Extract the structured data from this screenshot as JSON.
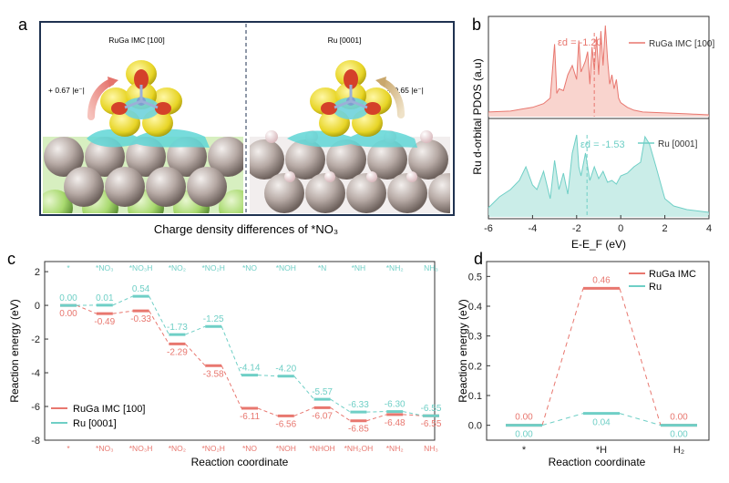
{
  "panels": {
    "a": {
      "label": "a",
      "left_title": "RuGa IMC [100]",
      "right_title": "Ru [0001]",
      "left_charge": "+ 0.67 |e⁻|",
      "right_charge": "+ 0.65 |e⁻|",
      "caption": "Charge density differences of *NO₃"
    },
    "b": {
      "label": "b",
      "ylabel": "Ru d-orbital PDOS (a.u)",
      "xlabel": "E-E_F (eV)",
      "xticks": [
        "-6",
        "-4",
        "-2",
        "0",
        "2",
        "4"
      ],
      "top_legend": "RuGa IMC [100]",
      "bottom_legend": "Ru [0001]",
      "top_ed": "εd = -1.20",
      "bottom_ed": "εd = -1.53"
    },
    "c": {
      "label": "c",
      "ylabel": "Reaction energy (eV)",
      "xlabel": "Reaction coordinate",
      "yticks": [
        "2",
        "0",
        "-2",
        "-4",
        "-6",
        "-8"
      ],
      "top_labels": [
        "*",
        "*NO₃",
        "*NO₃H",
        "*NO₂",
        "*NO₂H",
        "*NO",
        "*NOH",
        "*N",
        "*NH",
        "*NH₂",
        "NH₃"
      ],
      "bottom_labels": [
        "*",
        "*NO₃",
        "*NO₃H",
        "*NO₂",
        "*NO₂H",
        "*NO",
        "*NOH",
        "*NHOH",
        "*NH₂OH",
        "*NH₂",
        "NH₃"
      ],
      "legend": [
        "RuGa IMC [100]",
        "Ru [0001]"
      ]
    },
    "d": {
      "label": "d",
      "ylabel": "Reaction energy (eV)",
      "xlabel": "Reaction coordinate",
      "yticks": [
        "0.0",
        "0.1",
        "0.2",
        "0.3",
        "0.4",
        "0.5"
      ],
      "xticks": [
        "*",
        "*H",
        "H₂"
      ],
      "legend": [
        "RuGa IMC",
        "Ru"
      ]
    }
  },
  "colors": {
    "ruga": "#e8776f",
    "ru": "#6fcfc6",
    "ruga_fill": "#f7c9c2",
    "ru_fill": "#bde9e2",
    "frame": "#1f3250"
  },
  "chart_data": [
    {
      "type": "line",
      "panel": "c",
      "title": "",
      "xlabel": "Reaction coordinate",
      "ylabel": "Reaction energy (eV)",
      "ylim": [
        -8,
        2.6
      ],
      "series": [
        {
          "name": "RuGa IMC [100]",
          "values": [
            0.0,
            -0.49,
            -0.33,
            -2.29,
            -3.58,
            -6.11,
            -6.56,
            -6.07,
            -6.85,
            -6.48,
            -6.55
          ]
        },
        {
          "name": "Ru [0001]",
          "values": [
            0.0,
            0.01,
            0.54,
            -1.73,
            -1.25,
            -4.14,
            -4.2,
            -5.57,
            -6.33,
            -6.3,
            -6.55
          ]
        }
      ],
      "value_labels": {
        "ruga": [
          "0.00",
          "-0.49",
          "-0.33",
          "-2.29",
          "-3.58",
          "-6.11",
          "-6.56",
          "-6.07",
          "-6.85",
          "-6.48",
          "-6.55"
        ],
        "ru": [
          "0.00",
          "0.01",
          "0.54",
          "-1.73",
          "-1.25",
          "-4.14",
          "-4.20",
          "-5.57",
          "-6.33",
          "-6.30",
          "-6.55"
        ]
      }
    },
    {
      "type": "line",
      "panel": "d",
      "title": "",
      "categories": [
        "*",
        "*H",
        "H₂"
      ],
      "xlabel": "Reaction coordinate",
      "ylabel": "Reaction energy (eV)",
      "ylim": [
        -0.05,
        0.55
      ],
      "series": [
        {
          "name": "RuGa IMC",
          "values": [
            0.0,
            0.46,
            0.0
          ],
          "labels": [
            "0.00",
            "0.46",
            "0.00"
          ]
        },
        {
          "name": "Ru",
          "values": [
            0.0,
            0.04,
            0.0
          ],
          "labels": [
            "0.00",
            "0.04",
            "0.00"
          ]
        }
      ]
    },
    {
      "type": "area",
      "panel": "b",
      "title": "",
      "xlabel": "E-E_F (eV)",
      "ylabel": "Ru d-orbital PDOS (a.u)",
      "xlim": [
        -6,
        4
      ],
      "series": [
        {
          "name": "RuGa IMC [100]",
          "d_band_center": -1.2,
          "x": [
            -6,
            -5,
            -4.5,
            -4,
            -3.5,
            -3.2,
            -3.0,
            -2.9,
            -2.8,
            -2.6,
            -2.4,
            -2.2,
            -2.0,
            -1.9,
            -1.8,
            -1.6,
            -1.5,
            -1.4,
            -1.3,
            -1.2,
            -1.1,
            -1.0,
            -0.9,
            -0.8,
            -0.7,
            -0.6,
            -0.5,
            -0.4,
            -0.3,
            -0.2,
            -0.1,
            0,
            0.3,
            0.6,
            1,
            2,
            3,
            4
          ],
          "y": [
            0.05,
            0.06,
            0.08,
            0.1,
            0.14,
            0.2,
            0.78,
            0.25,
            0.3,
            0.28,
            0.45,
            0.55,
            0.4,
            0.82,
            0.48,
            0.6,
            0.7,
            0.35,
            0.75,
            0.5,
            0.86,
            0.45,
            0.92,
            0.55,
            0.98,
            0.62,
            0.35,
            0.45,
            0.3,
            0.4,
            0.2,
            0.15,
            0.1,
            0.07,
            0.05,
            0.04,
            0.03,
            0.02
          ]
        },
        {
          "name": "Ru [0001]",
          "d_band_center": -1.53,
          "x": [
            -6,
            -5.5,
            -5,
            -4.6,
            -4.3,
            -4.0,
            -3.8,
            -3.5,
            -3.2,
            -3.0,
            -2.8,
            -2.6,
            -2.4,
            -2.2,
            -2.0,
            -1.9,
            -1.8,
            -1.6,
            -1.4,
            -1.2,
            -1.0,
            -0.8,
            -0.6,
            -0.4,
            -0.2,
            0,
            0.3,
            0.6,
            0.9,
            1.1,
            1.3,
            1.6,
            2.0,
            2.4,
            3,
            4
          ],
          "y": [
            0.1,
            0.22,
            0.3,
            0.4,
            0.55,
            0.35,
            0.3,
            0.5,
            0.2,
            0.62,
            0.3,
            0.48,
            0.25,
            0.7,
            0.9,
            0.55,
            0.45,
            0.7,
            0.4,
            0.55,
            0.42,
            0.5,
            0.38,
            0.4,
            0.36,
            0.45,
            0.48,
            0.55,
            0.6,
            0.88,
            0.8,
            0.55,
            0.2,
            0.12,
            0.08,
            0.05
          ]
        }
      ]
    }
  ]
}
